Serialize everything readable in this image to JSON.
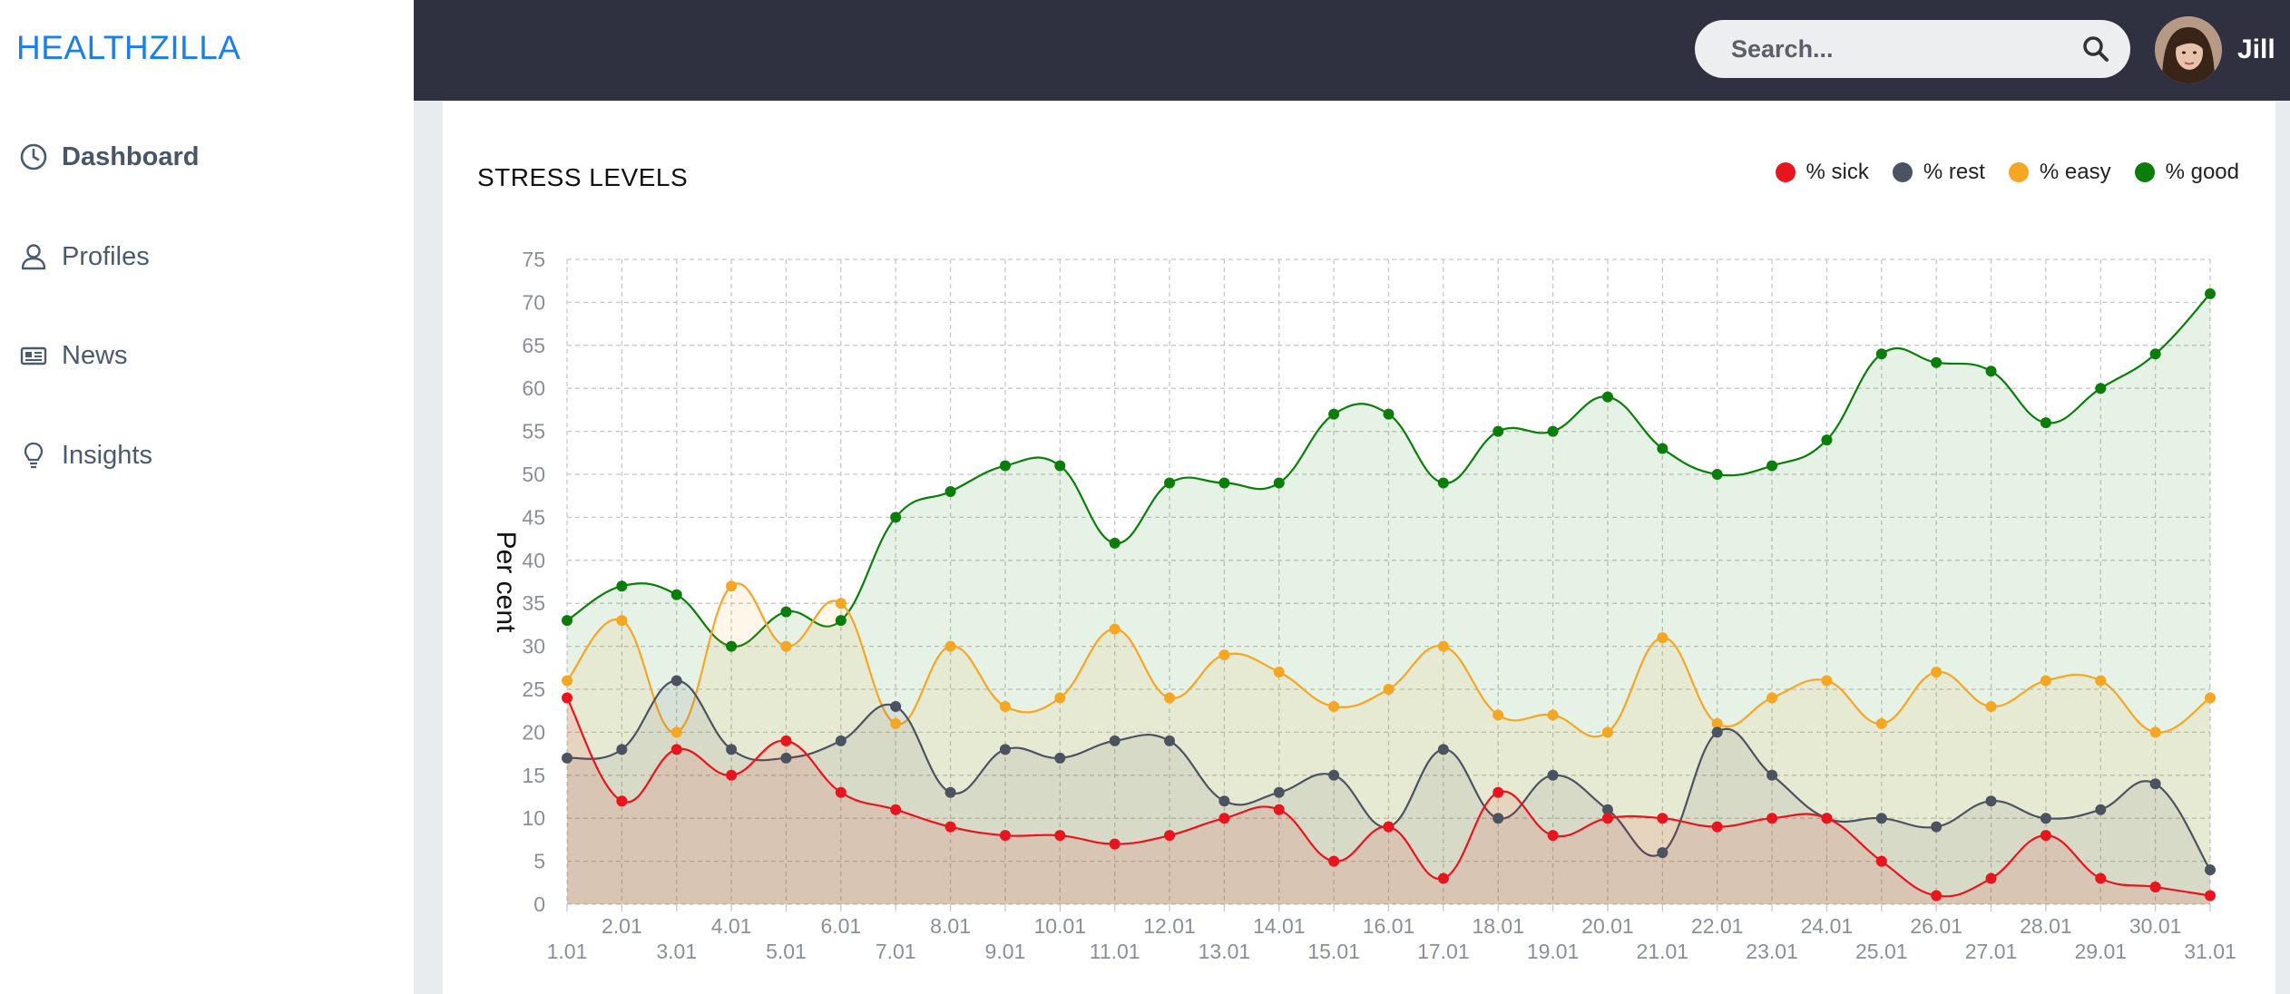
{
  "brand": "HEALTHZILLA",
  "sidebar": {
    "items": [
      {
        "label": "Dashboard",
        "icon": "clock-icon",
        "active": true
      },
      {
        "label": "Profiles",
        "icon": "user-icon",
        "active": false
      },
      {
        "label": "News",
        "icon": "newspaper-icon",
        "active": false
      },
      {
        "label": "Insights",
        "icon": "lightbulb-icon",
        "active": false
      }
    ]
  },
  "header": {
    "search_placeholder": "Search...",
    "user_name": "Jill"
  },
  "card": {
    "title": "STRESS LEVELS"
  },
  "colors": {
    "brand": "#1a7fe6",
    "topbar": "#2f3140",
    "sick": "#e8141e",
    "rest": "#4b5360",
    "easy": "#f5a623",
    "good": "#0a7d0a"
  },
  "chart_data": {
    "type": "area",
    "title": "STRESS LEVELS",
    "xlabel": "",
    "ylabel": "Per cent",
    "ylim": [
      0,
      75
    ],
    "yticks": [
      0,
      5,
      10,
      15,
      20,
      25,
      30,
      35,
      40,
      45,
      50,
      55,
      60,
      65,
      70,
      75
    ],
    "grid": true,
    "legend_position": "top-right",
    "categories": [
      "1.01",
      "2.01",
      "3.01",
      "4.01",
      "5.01",
      "6.01",
      "7.01",
      "8.01",
      "9.01",
      "10.01",
      "11.01",
      "12.01",
      "13.01",
      "14.01",
      "15.01",
      "16.01",
      "17.01",
      "18.01",
      "19.01",
      "20.01",
      "21.01",
      "22.01",
      "23.01",
      "24.01",
      "25.01",
      "26.01",
      "27.01",
      "28.01",
      "29.01",
      "30.01",
      "31.01"
    ],
    "series": [
      {
        "name": "% sick",
        "color": "#e8141e",
        "values": [
          24,
          12,
          18,
          15,
          19,
          13,
          11,
          9,
          8,
          8,
          7,
          8,
          10,
          11,
          5,
          9,
          3,
          13,
          8,
          10,
          10,
          9,
          10,
          10,
          5,
          1,
          3,
          8,
          3,
          2,
          1
        ]
      },
      {
        "name": "% rest",
        "color": "#4b5360",
        "values": [
          17,
          18,
          26,
          18,
          17,
          19,
          23,
          13,
          18,
          17,
          19,
          19,
          12,
          13,
          15,
          9,
          18,
          10,
          15,
          11,
          6,
          20,
          15,
          10,
          10,
          9,
          12,
          10,
          11,
          14,
          4
        ]
      },
      {
        "name": "% easy",
        "color": "#f5a623",
        "values": [
          26,
          33,
          20,
          37,
          30,
          35,
          21,
          30,
          23,
          24,
          32,
          24,
          29,
          27,
          23,
          25,
          30,
          22,
          22,
          20,
          31,
          21,
          24,
          26,
          21,
          27,
          23,
          26,
          26,
          20,
          24
        ]
      },
      {
        "name": "% good",
        "color": "#0a7d0a",
        "values": [
          33,
          37,
          36,
          30,
          34,
          33,
          45,
          48,
          51,
          51,
          42,
          49,
          49,
          49,
          57,
          57,
          49,
          55,
          55,
          59,
          53,
          50,
          51,
          54,
          64,
          63,
          62,
          56,
          60,
          64,
          71
        ]
      }
    ]
  }
}
